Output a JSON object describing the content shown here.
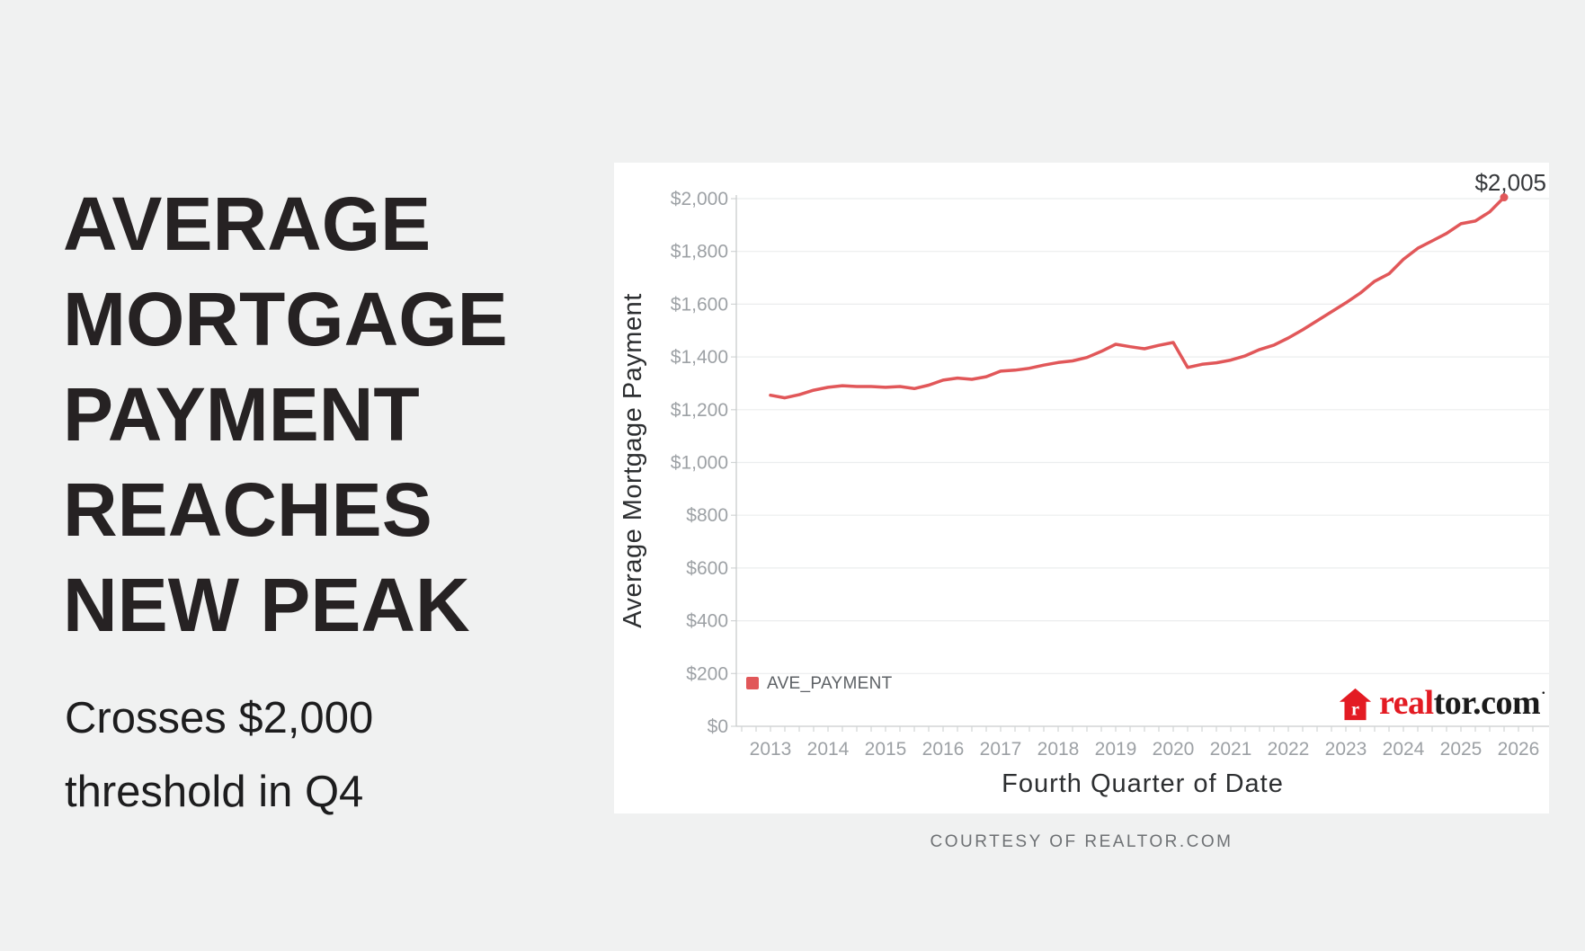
{
  "page": {
    "background": "#f0f1f1",
    "panel_background": "#ffffff"
  },
  "headline": {
    "lines": [
      "AVERAGE",
      "MORTGAGE",
      "PAYMENT",
      "REACHES",
      "NEW PEAK"
    ],
    "color": "#262223"
  },
  "subtitle": {
    "lines": [
      "Crosses $2,000",
      "threshold in Q4"
    ]
  },
  "chart_data": {
    "type": "line",
    "title": "",
    "xlabel": "Fourth Quarter of Date",
    "ylabel": "Average Mortgage Payment",
    "x_periods": {
      "start": "2013-Q1",
      "end": "2025-Q4",
      "cadence": "quarterly",
      "points": 52
    },
    "x_year_labels": [
      "2013",
      "2014",
      "2015",
      "2016",
      "2017",
      "2018",
      "2019",
      "2020",
      "2021",
      "2022",
      "2023",
      "2024",
      "2025",
      "2026"
    ],
    "y_tick_labels": [
      "$0",
      "$200",
      "$400",
      "$600",
      "$800",
      "$1,000",
      "$1,200",
      "$1,400",
      "$1,600",
      "$1,800",
      "$2,000"
    ],
    "y_tick_values": [
      0,
      200,
      400,
      600,
      800,
      1000,
      1200,
      1400,
      1600,
      1800,
      2000
    ],
    "ylim": [
      0,
      2000
    ],
    "grid": "horizontal",
    "legend_position": "bottom-left",
    "series": [
      {
        "name": "AVE_PAYMENT",
        "color": "#e15759",
        "values": [
          1255,
          1245,
          1257,
          1274,
          1285,
          1291,
          1288,
          1288,
          1285,
          1288,
          1280,
          1293,
          1312,
          1320,
          1315,
          1325,
          1346,
          1350,
          1357,
          1369,
          1379,
          1385,
          1398,
          1421,
          1448,
          1439,
          1431,
          1444,
          1455,
          1360,
          1372,
          1378,
          1388,
          1404,
          1428,
          1445,
          1472,
          1503,
          1537,
          1571,
          1605,
          1642,
          1687,
          1715,
          1770,
          1812,
          1840,
          1868,
          1905,
          1915,
          1950,
          2005
        ]
      }
    ],
    "annotation": {
      "text": "$2,005",
      "value": 2005
    },
    "colors": {
      "grid": "#ebedee",
      "axis": "#c9cccd",
      "tick": "#d2d5d6",
      "tick_label": "#9da1a5",
      "axis_title": "#2d2f31",
      "annotation": "#36383b",
      "legend_label": "#5d6165"
    }
  },
  "logo": {
    "brand_red_text": "real",
    "brand_dark_text": "tor.com",
    "trademark": "·",
    "red": "#e31b23"
  },
  "footer": {
    "text": "COURTESY OF REALTOR.COM"
  }
}
